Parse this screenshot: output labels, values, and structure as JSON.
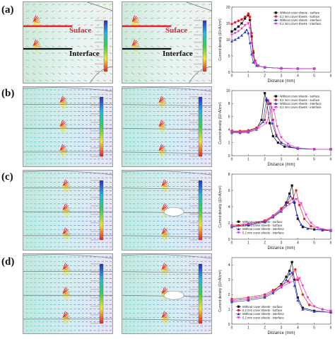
{
  "labels": [
    "(a)",
    "(b)",
    "(c)",
    "(d)"
  ],
  "annotations": {
    "surface": "Suface",
    "interface": "Interface"
  },
  "colors": {
    "black": "#111111",
    "red": "#e8202a",
    "blue": "#2a3bd8",
    "magenta": "#e23bd0"
  },
  "chart_data": [
    {
      "type": "line",
      "xlabel": "Distance (mm)",
      "ylabel": "Current density (10⁴A/cm²)",
      "xlim": [
        0,
        6
      ],
      "ylim": [
        0,
        20
      ],
      "xticks": [
        0,
        1,
        2,
        3,
        4,
        5,
        6
      ],
      "yticks": [
        0,
        5,
        10,
        15,
        20
      ],
      "legend_position": "top-right",
      "series": [
        {
          "name": "Without cover sheets - surface",
          "marker": "square",
          "color": "#111111",
          "points": [
            [
              0,
              12.5
            ],
            [
              0.2,
              13.2
            ],
            [
              0.4,
              14
            ],
            [
              0.6,
              15
            ],
            [
              0.8,
              16.5
            ],
            [
              1.0,
              17.5
            ],
            [
              1.1,
              16
            ],
            [
              1.2,
              11
            ],
            [
              1.3,
              6
            ],
            [
              1.4,
              3.5
            ],
            [
              1.6,
              2
            ],
            [
              2,
              1.5
            ],
            [
              3,
              1.2
            ],
            [
              4,
              1.1
            ],
            [
              5,
              1.1
            ]
          ]
        },
        {
          "name": "0.2 mm cover sheets - surface",
          "marker": "circle",
          "color": "#e8202a",
          "points": [
            [
              0,
              14.8
            ],
            [
              0.2,
              15.3
            ],
            [
              0.4,
              15.8
            ],
            [
              0.6,
              16.2
            ],
            [
              0.8,
              17
            ],
            [
              1.0,
              18
            ],
            [
              1.1,
              17
            ],
            [
              1.2,
              12
            ],
            [
              1.3,
              6.5
            ],
            [
              1.4,
              3.5
            ],
            [
              1.6,
              2
            ],
            [
              2,
              1.5
            ],
            [
              3,
              1.2
            ],
            [
              4,
              1.1
            ],
            [
              5,
              1.1
            ]
          ]
        },
        {
          "name": "Without cover sheets - interface",
          "marker": "triangle-up",
          "color": "#2a3bd8",
          "points": [
            [
              0,
              9.5
            ],
            [
              0.2,
              10
            ],
            [
              0.4,
              10.6
            ],
            [
              0.6,
              11.3
            ],
            [
              0.8,
              12.3
            ],
            [
              0.9,
              13
            ],
            [
              1.0,
              12
            ],
            [
              1.1,
              9
            ],
            [
              1.2,
              5.5
            ],
            [
              1.3,
              3
            ],
            [
              1.5,
              2
            ],
            [
              2,
              1.5
            ],
            [
              3,
              1.2
            ],
            [
              4,
              1.1
            ],
            [
              5,
              1.1
            ]
          ]
        },
        {
          "name": "0.2 mm cover sheets - interface",
          "marker": "triangle-down",
          "color": "#e23bd0",
          "points": [
            [
              0,
              11.5
            ],
            [
              0.2,
              12
            ],
            [
              0.4,
              12.6
            ],
            [
              0.6,
              13.4
            ],
            [
              0.8,
              14.4
            ],
            [
              1.0,
              15
            ],
            [
              1.1,
              13.5
            ],
            [
              1.2,
              9
            ],
            [
              1.3,
              5
            ],
            [
              1.4,
              3
            ],
            [
              1.6,
              2
            ],
            [
              2,
              1.5
            ],
            [
              3,
              1.2
            ],
            [
              4,
              1.1
            ],
            [
              5,
              1.1
            ]
          ]
        }
      ]
    },
    {
      "type": "line",
      "xlabel": "Distance (mm)",
      "ylabel": "Current density (10⁴A/cm²)",
      "xlim": [
        0,
        6
      ],
      "ylim": [
        0,
        10
      ],
      "xticks": [
        0,
        1,
        2,
        3,
        4,
        5,
        6
      ],
      "yticks": [
        0,
        2,
        4,
        6,
        8,
        10
      ],
      "legend_position": "top-right",
      "series": [
        {
          "name": "Without cover sheets - surface",
          "marker": "square",
          "color": "#111111",
          "points": [
            [
              0,
              3.7
            ],
            [
              0.5,
              3.7
            ],
            [
              1,
              3.8
            ],
            [
              1.5,
              4.2
            ],
            [
              1.8,
              5.5
            ],
            [
              2.0,
              9.6
            ],
            [
              2.1,
              8.5
            ],
            [
              2.3,
              5
            ],
            [
              2.5,
              3
            ],
            [
              2.8,
              2
            ],
            [
              3.2,
              1.4
            ],
            [
              4,
              1.1
            ],
            [
              5,
              1
            ],
            [
              6,
              1
            ]
          ]
        },
        {
          "name": "0.2 mm cover sheets - surface",
          "marker": "circle",
          "color": "#e8202a",
          "points": [
            [
              0,
              3.8
            ],
            [
              0.5,
              3.8
            ],
            [
              1,
              3.9
            ],
            [
              1.5,
              4.3
            ],
            [
              2.0,
              5.5
            ],
            [
              2.2,
              8.5
            ],
            [
              2.35,
              8
            ],
            [
              2.5,
              5.5
            ],
            [
              2.7,
              3.2
            ],
            [
              3,
              2
            ],
            [
              3.5,
              1.4
            ],
            [
              4,
              1.1
            ],
            [
              5,
              1
            ],
            [
              6,
              1
            ]
          ]
        },
        {
          "name": "Without cover sheets - interface",
          "marker": "triangle-up",
          "color": "#2a3bd8",
          "points": [
            [
              0,
              3.5
            ],
            [
              0.5,
              3.5
            ],
            [
              1,
              3.6
            ],
            [
              1.5,
              4
            ],
            [
              1.9,
              5.2
            ],
            [
              2.1,
              8.8
            ],
            [
              2.25,
              8
            ],
            [
              2.45,
              5
            ],
            [
              2.7,
              3
            ],
            [
              3,
              2
            ],
            [
              3.5,
              1.4
            ],
            [
              4,
              1.1
            ],
            [
              5,
              1
            ],
            [
              6,
              1
            ]
          ]
        },
        {
          "name": "0.2 mm cover sheets - interface",
          "marker": "triangle-down",
          "color": "#e23bd0",
          "points": [
            [
              0,
              3.6
            ],
            [
              0.5,
              3.6
            ],
            [
              1,
              3.7
            ],
            [
              1.5,
              4
            ],
            [
              2.1,
              5
            ],
            [
              2.4,
              7.4
            ],
            [
              2.55,
              7
            ],
            [
              2.75,
              4.5
            ],
            [
              3,
              2.8
            ],
            [
              3.4,
              1.8
            ],
            [
              4,
              1.2
            ],
            [
              5,
              1
            ],
            [
              6,
              1
            ]
          ]
        }
      ]
    },
    {
      "type": "line",
      "xlabel": "Distance (mm)",
      "ylabel": "Current density (10⁴A/cm²)",
      "xlim": [
        0,
        6
      ],
      "ylim": [
        0,
        8
      ],
      "xticks": [
        0,
        1,
        2,
        3,
        4,
        5,
        6
      ],
      "yticks": [
        0,
        2,
        4,
        6,
        8
      ],
      "legend_position": "bottom-left",
      "series": [
        {
          "name": "Without cover sheets - surface",
          "marker": "square",
          "color": "#111111",
          "points": [
            [
              0,
              1.6
            ],
            [
              1,
              1.8
            ],
            [
              2,
              2.2
            ],
            [
              2.5,
              2.8
            ],
            [
              3,
              3.6
            ],
            [
              3.3,
              4.5
            ],
            [
              3.5,
              5.6
            ],
            [
              3.65,
              6.6
            ],
            [
              3.8,
              4.5
            ],
            [
              4,
              2.5
            ],
            [
              4.3,
              1.5
            ],
            [
              5,
              1.2
            ],
            [
              6,
              1.1
            ]
          ]
        },
        {
          "name": "0.2 mm cover sheets - surface",
          "marker": "circle",
          "color": "#e8202a",
          "points": [
            [
              0,
              1.7
            ],
            [
              1,
              1.9
            ],
            [
              2,
              2.3
            ],
            [
              2.5,
              2.9
            ],
            [
              3,
              3.8
            ],
            [
              3.4,
              4.5
            ],
            [
              3.7,
              5
            ],
            [
              3.9,
              6
            ],
            [
              4.1,
              4.2
            ],
            [
              4.4,
              2.5
            ],
            [
              4.8,
              1.6
            ],
            [
              5.5,
              1.2
            ],
            [
              6,
              1.1
            ]
          ]
        },
        {
          "name": "Without cover sheets - interface",
          "marker": "triangle-up",
          "color": "#2a3bd8",
          "points": [
            [
              0,
              1.5
            ],
            [
              1,
              1.7
            ],
            [
              2,
              2.1
            ],
            [
              2.5,
              2.7
            ],
            [
              3,
              3.4
            ],
            [
              3.3,
              4.2
            ],
            [
              3.55,
              5.3
            ],
            [
              3.75,
              4.6
            ],
            [
              3.95,
              3
            ],
            [
              4.2,
              1.8
            ],
            [
              4.6,
              1.3
            ],
            [
              5.5,
              1.1
            ],
            [
              6,
              1.05
            ]
          ]
        },
        {
          "name": "0.2 mm cover sheets - interface",
          "marker": "triangle-down",
          "color": "#e23bd0",
          "points": [
            [
              0,
              1.6
            ],
            [
              1,
              1.8
            ],
            [
              2,
              2.2
            ],
            [
              2.5,
              2.8
            ],
            [
              3,
              3.5
            ],
            [
              3.5,
              4.3
            ],
            [
              3.9,
              4.9
            ],
            [
              4.2,
              4.4
            ],
            [
              4.5,
              3
            ],
            [
              4.8,
              2
            ],
            [
              5.2,
              1.4
            ],
            [
              6,
              1.1
            ]
          ]
        }
      ]
    },
    {
      "type": "line",
      "xlabel": "Distance (mm)",
      "ylabel": "Current density (10⁴A/cm²)",
      "xlim": [
        0,
        6
      ],
      "ylim": [
        0,
        4.5
      ],
      "xticks": [
        0,
        1,
        2,
        3,
        4,
        5,
        6
      ],
      "yticks": [
        0,
        1,
        2,
        3,
        4
      ],
      "legend_position": "bottom-left",
      "series": [
        {
          "name": "Without cover sheets - surface",
          "marker": "square",
          "color": "#111111",
          "points": [
            [
              0,
              1.6
            ],
            [
              1,
              1.7
            ],
            [
              2,
              1.9
            ],
            [
              2.5,
              2.2
            ],
            [
              3,
              2.7
            ],
            [
              3.3,
              3.2
            ],
            [
              3.5,
              3.6
            ],
            [
              3.65,
              4.2
            ],
            [
              3.8,
              3
            ],
            [
              4,
              1.8
            ],
            [
              4.3,
              1.1
            ],
            [
              5,
              0.9
            ],
            [
              6,
              0.8
            ]
          ]
        },
        {
          "name": "0.2 mm cover sheets - surface",
          "marker": "circle",
          "color": "#e8202a",
          "points": [
            [
              0,
              1.7
            ],
            [
              1,
              1.8
            ],
            [
              2,
              2
            ],
            [
              2.5,
              2.3
            ],
            [
              3,
              2.6
            ],
            [
              3.4,
              2.9
            ],
            [
              3.7,
              3.4
            ],
            [
              3.85,
              3.7
            ],
            [
              4.0,
              3
            ],
            [
              4.3,
              2
            ],
            [
              4.7,
              1.3
            ],
            [
              5.5,
              1
            ],
            [
              6,
              0.9
            ]
          ]
        },
        {
          "name": "Without cover sheets - interface",
          "marker": "triangle-up",
          "color": "#2a3bd8",
          "points": [
            [
              0,
              1.5
            ],
            [
              1,
              1.6
            ],
            [
              2,
              1.8
            ],
            [
              2.5,
              2.1
            ],
            [
              3,
              2.5
            ],
            [
              3.3,
              3
            ],
            [
              3.5,
              3.4
            ],
            [
              3.65,
              3.5
            ],
            [
              3.8,
              2.6
            ],
            [
              4,
              1.6
            ],
            [
              4.3,
              1
            ],
            [
              5,
              0.85
            ],
            [
              6,
              0.8
            ]
          ]
        },
        {
          "name": "0.2 mm cover sheets - interface",
          "marker": "triangle-down",
          "color": "#e23bd0",
          "points": [
            [
              0,
              1.6
            ],
            [
              1,
              1.7
            ],
            [
              2,
              1.9
            ],
            [
              2.5,
              2.2
            ],
            [
              3,
              2.5
            ],
            [
              3.5,
              2.8
            ],
            [
              3.9,
              3
            ],
            [
              4.1,
              3.1
            ],
            [
              4.3,
              2.6
            ],
            [
              4.6,
              1.8
            ],
            [
              5,
              1.2
            ],
            [
              5.5,
              1
            ],
            [
              6,
              0.9
            ]
          ]
        }
      ]
    }
  ]
}
